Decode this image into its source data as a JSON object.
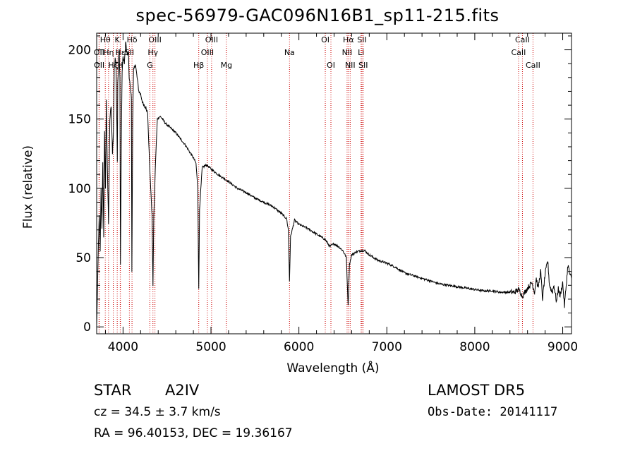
{
  "chart_data": {
    "type": "line",
    "title": "spec-56979-GAC096N16B1_sp11-215.fits",
    "xlabel": "Wavelength (Å)",
    "ylabel": "Flux (relative)",
    "xlim": [
      3700,
      9100
    ],
    "ylim": [
      -5,
      212
    ],
    "x_ticks": [
      4000,
      5000,
      6000,
      7000,
      8000,
      9000
    ],
    "y_ticks": [
      0,
      50,
      100,
      150,
      200
    ],
    "grid": false,
    "line_color": "#000000",
    "marker_color": "#cc0000",
    "anchors": [
      [
        3700,
        0
      ],
      [
        3712,
        35
      ],
      [
        3720,
        60
      ],
      [
        3730,
        80
      ],
      [
        3740,
        55
      ],
      [
        3750,
        100
      ],
      [
        3760,
        70
      ],
      [
        3770,
        120
      ],
      [
        3780,
        65
      ],
      [
        3790,
        140
      ],
      [
        3800,
        100
      ],
      [
        3810,
        165
      ],
      [
        3820,
        120
      ],
      [
        3835,
        75
      ],
      [
        3850,
        150
      ],
      [
        3865,
        160
      ],
      [
        3880,
        125
      ],
      [
        3890,
        140
      ],
      [
        3900,
        185
      ],
      [
        3910,
        195
      ],
      [
        3920,
        190
      ],
      [
        3930,
        145
      ],
      [
        3935,
        120
      ],
      [
        3940,
        175
      ],
      [
        3955,
        200
      ],
      [
        3965,
        180
      ],
      [
        3970,
        45
      ],
      [
        3980,
        130
      ],
      [
        3990,
        185
      ],
      [
        4000,
        195
      ],
      [
        4015,
        190
      ],
      [
        4030,
        205
      ],
      [
        4040,
        200
      ],
      [
        4050,
        195
      ],
      [
        4060,
        200
      ],
      [
        4070,
        180
      ],
      [
        4080,
        175
      ],
      [
        4095,
        165
      ],
      [
        4100,
        40
      ],
      [
        4110,
        150
      ],
      [
        4120,
        185
      ],
      [
        4140,
        190
      ],
      [
        4160,
        180
      ],
      [
        4180,
        170
      ],
      [
        4200,
        168
      ],
      [
        4230,
        160
      ],
      [
        4260,
        158
      ],
      [
        4280,
        155
      ],
      [
        4300,
        120
      ],
      [
        4330,
        80
      ],
      [
        4340,
        30
      ],
      [
        4350,
        80
      ],
      [
        4370,
        120
      ],
      [
        4390,
        150
      ],
      [
        4420,
        152
      ],
      [
        4450,
        150
      ],
      [
        4480,
        147
      ],
      [
        4500,
        146
      ],
      [
        4550,
        143
      ],
      [
        4600,
        140
      ],
      [
        4650,
        136
      ],
      [
        4700,
        132
      ],
      [
        4750,
        127
      ],
      [
        4800,
        122
      ],
      [
        4830,
        118
      ],
      [
        4850,
        100
      ],
      [
        4861,
        27
      ],
      [
        4870,
        85
      ],
      [
        4900,
        115
      ],
      [
        4950,
        117
      ],
      [
        5000,
        114
      ],
      [
        5100,
        109
      ],
      [
        5200,
        105
      ],
      [
        5300,
        100
      ],
      [
        5400,
        97
      ],
      [
        5500,
        93
      ],
      [
        5600,
        90
      ],
      [
        5700,
        87
      ],
      [
        5800,
        82
      ],
      [
        5860,
        78
      ],
      [
        5880,
        70
      ],
      [
        5893,
        33
      ],
      [
        5905,
        65
      ],
      [
        5950,
        77
      ],
      [
        6000,
        74
      ],
      [
        6100,
        71
      ],
      [
        6200,
        67
      ],
      [
        6250,
        65
      ],
      [
        6300,
        63
      ],
      [
        6350,
        58
      ],
      [
        6400,
        60
      ],
      [
        6450,
        58
      ],
      [
        6500,
        55
      ],
      [
        6540,
        50
      ],
      [
        6560,
        15
      ],
      [
        6575,
        45
      ],
      [
        6600,
        52
      ],
      [
        6650,
        54
      ],
      [
        6700,
        55
      ],
      [
        6750,
        55
      ],
      [
        6800,
        52
      ],
      [
        6900,
        48
      ],
      [
        7000,
        46
      ],
      [
        7100,
        43
      ],
      [
        7200,
        39
      ],
      [
        7300,
        37
      ],
      [
        7400,
        35
      ],
      [
        7500,
        33
      ],
      [
        7600,
        31
      ],
      [
        7700,
        30
      ],
      [
        7800,
        29
      ],
      [
        7900,
        28
      ],
      [
        8000,
        27
      ],
      [
        8100,
        26
      ],
      [
        8200,
        26
      ],
      [
        8300,
        25
      ],
      [
        8400,
        25
      ],
      [
        8450,
        25
      ],
      [
        8500,
        27
      ],
      [
        8520,
        25
      ],
      [
        8540,
        22
      ],
      [
        8600,
        28
      ],
      [
        8650,
        32
      ],
      [
        8680,
        25
      ],
      [
        8700,
        35
      ],
      [
        8720,
        28
      ],
      [
        8750,
        40
      ],
      [
        8770,
        20
      ],
      [
        8800,
        38
      ],
      [
        8830,
        48
      ],
      [
        8850,
        30
      ],
      [
        8880,
        25
      ],
      [
        8900,
        30
      ],
      [
        8930,
        18
      ],
      [
        8950,
        28
      ],
      [
        8970,
        22
      ],
      [
        9000,
        32
      ],
      [
        9020,
        15
      ],
      [
        9040,
        30
      ],
      [
        9060,
        45
      ],
      [
        9080,
        38
      ],
      [
        9100,
        35
      ]
    ],
    "line_markers": [
      {
        "label": "Hθ",
        "x": 3798,
        "row": 0
      },
      {
        "label": "K",
        "x": 3934,
        "row": 0
      },
      {
        "label": "Hδ",
        "x": 4102,
        "row": 0
      },
      {
        "label": "OIII",
        "x": 4363,
        "row": 0
      },
      {
        "label": "OIII",
        "x": 5007,
        "row": 0
      },
      {
        "label": "OI",
        "x": 6300,
        "row": 0
      },
      {
        "label": "Hα",
        "x": 6563,
        "row": 0
      },
      {
        "label": "SII",
        "x": 6717,
        "row": 0
      },
      {
        "label": "CaII",
        "x": 8542,
        "row": 0
      },
      {
        "label": "OII",
        "x": 3727,
        "row": 1
      },
      {
        "label": "Hη",
        "x": 3835,
        "row": 1
      },
      {
        "label": "Hε",
        "x": 3970,
        "row": 1
      },
      {
        "label": "SII",
        "x": 4072,
        "row": 1
      },
      {
        "label": "Hγ",
        "x": 4340,
        "row": 1
      },
      {
        "label": "OIII",
        "x": 4959,
        "row": 1
      },
      {
        "label": "Na",
        "x": 5893,
        "row": 1
      },
      {
        "label": "NII",
        "x": 6548,
        "row": 1
      },
      {
        "label": "Li",
        "x": 6707,
        "row": 1
      },
      {
        "label": "CaII",
        "x": 8498,
        "row": 1
      },
      {
        "label": "OII",
        "x": 3729,
        "row": 2
      },
      {
        "label": "Hζ",
        "x": 3889,
        "row": 2
      },
      {
        "label": "H",
        "x": 3968,
        "row": 2
      },
      {
        "label": "G",
        "x": 4305,
        "row": 2
      },
      {
        "label": "Hβ",
        "x": 4861,
        "row": 2
      },
      {
        "label": "Mg",
        "x": 5175,
        "row": 2
      },
      {
        "label": "OI",
        "x": 6364,
        "row": 2
      },
      {
        "label": "NII",
        "x": 6583,
        "row": 2
      },
      {
        "label": "SII",
        "x": 6731,
        "row": 2
      },
      {
        "label": "CaII",
        "x": 8662,
        "row": 2
      }
    ]
  },
  "info": {
    "object_type": "STAR",
    "spectral_class": "A2IV",
    "survey": "LAMOST DR5",
    "cz": "cz = 34.5 ± 3.7 km/s",
    "obs_date": "Obs-Date: 20141117",
    "radec": "RA =  96.40153, DEC =  19.36167"
  }
}
